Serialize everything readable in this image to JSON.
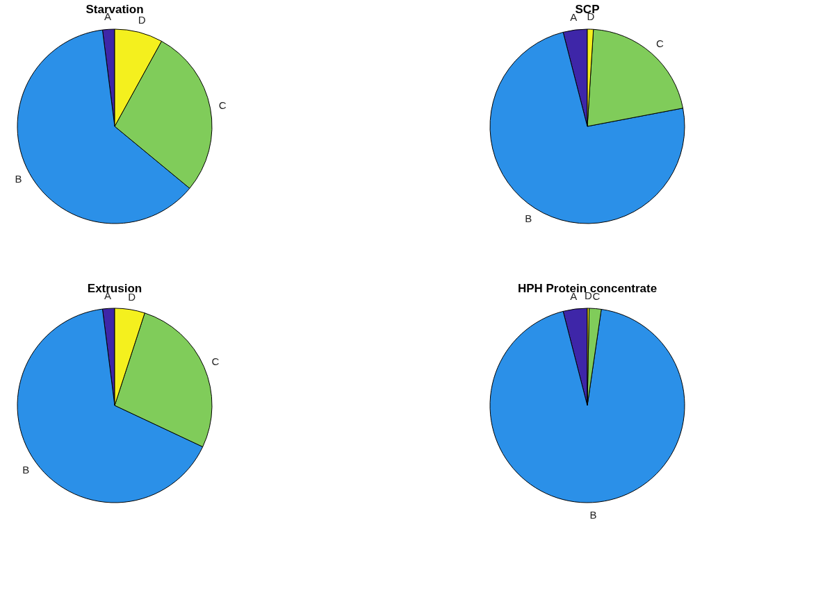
{
  "chart_data": [
    {
      "type": "pie",
      "title": "Starvation",
      "categories": [
        "A",
        "B",
        "C",
        "D"
      ],
      "values": [
        2,
        62,
        28,
        8
      ],
      "colors": [
        "#3e26a8",
        "#2b90e8",
        "#80cc5a",
        "#f4f01e"
      ]
    },
    {
      "type": "pie",
      "title": "SCP",
      "categories": [
        "A",
        "B",
        "C",
        "D"
      ],
      "values": [
        4,
        74,
        21,
        1
      ],
      "colors": [
        "#3e26a8",
        "#2b90e8",
        "#80cc5a",
        "#f4f01e"
      ]
    },
    {
      "type": "pie",
      "title": "Extrusion",
      "categories": [
        "A",
        "B",
        "C",
        "D"
      ],
      "values": [
        2,
        66,
        27,
        5
      ],
      "colors": [
        "#3e26a8",
        "#2b90e8",
        "#80cc5a",
        "#f4f01e"
      ]
    },
    {
      "type": "pie",
      "title": "HPH Protein concentrate",
      "categories": [
        "A",
        "B",
        "C",
        "D"
      ],
      "values": [
        4,
        93.7,
        2,
        0.3
      ],
      "colors": [
        "#3e26a8",
        "#2b90e8",
        "#80cc5a",
        "#f4f01e"
      ]
    }
  ]
}
